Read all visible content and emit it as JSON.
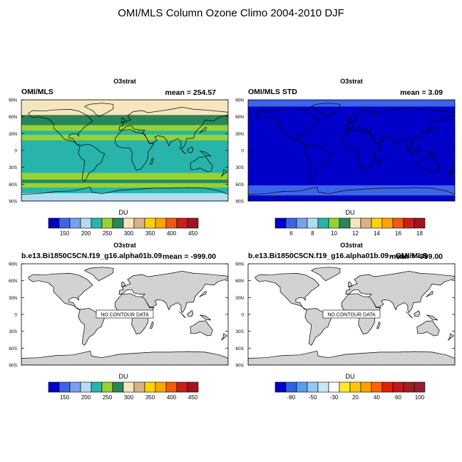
{
  "page_title": "OMI/MLS Column Ozone Climo 2004-2010 DJF",
  "lat_ticks": [
    "90N",
    "60N",
    "30N",
    "0",
    "30S",
    "60S",
    "90S"
  ],
  "no_data_label": "NO CONTOUR DATA",
  "chart_data": [
    {
      "type": "heatmap",
      "center_title": "O3strat",
      "left_title": "OMI/MLS",
      "right_title": "mean = 254.57",
      "colorbar_label": "DU",
      "colorbar_colors": [
        "#0000c8",
        "#3c64e6",
        "#78a0f0",
        "#b4dcf0",
        "#28b4aa",
        "#96d232",
        "#28875a",
        "#f5e6be",
        "#d7b482",
        "#ffd200",
        "#ffa500",
        "#f05a0a",
        "#c81e1e",
        "#a0141e"
      ],
      "colorbar_ticks": [
        "150",
        "200",
        "250",
        "300",
        "350",
        "400",
        "450"
      ],
      "has_data": true,
      "bands": [
        {
          "lat_top": 90,
          "lat_bottom": 63,
          "color": "#f5e6be"
        },
        {
          "lat_top": 63,
          "lat_bottom": 45,
          "color": "#28875a"
        },
        {
          "lat_top": 45,
          "lat_bottom": 35,
          "color": "#96d232"
        },
        {
          "lat_top": 35,
          "lat_bottom": 28,
          "color": "#28b4aa"
        },
        {
          "lat_top": 28,
          "lat_bottom": 18,
          "color": "#96d232"
        },
        {
          "lat_top": 18,
          "lat_bottom": -40,
          "color": "#28b4aa"
        },
        {
          "lat_top": -40,
          "lat_bottom": -52,
          "color": "#96d232"
        },
        {
          "lat_top": -52,
          "lat_bottom": -58,
          "color": "#28875a"
        },
        {
          "lat_top": -58,
          "lat_bottom": -66,
          "color": "#96d232"
        },
        {
          "lat_top": -66,
          "lat_bottom": -76,
          "color": "#28b4aa"
        },
        {
          "lat_top": -76,
          "lat_bottom": -90,
          "color": "#b4dcf0"
        }
      ]
    },
    {
      "type": "heatmap",
      "center_title": "O3strat",
      "left_title": "OMI/MLS STD",
      "right_title": "mean =   3.09",
      "colorbar_label": "DU",
      "colorbar_colors": [
        "#0000c8",
        "#3c64e6",
        "#78a0f0",
        "#b4dcf0",
        "#28b4aa",
        "#96d232",
        "#28875a",
        "#f5e6be",
        "#d7b482",
        "#ffd200",
        "#ffa500",
        "#f05a0a",
        "#c81e1e",
        "#a0141e"
      ],
      "colorbar_ticks": [
        "6",
        "8",
        "10",
        "12",
        "14",
        "16",
        "18"
      ],
      "has_data": true,
      "bands": [
        {
          "lat_top": 90,
          "lat_bottom": 78,
          "color": "#3c64e6"
        },
        {
          "lat_top": 78,
          "lat_bottom": -62,
          "color": "#0000c8"
        },
        {
          "lat_top": -62,
          "lat_bottom": -80,
          "color": "#3c64e6"
        },
        {
          "lat_top": -80,
          "lat_bottom": -90,
          "color": "#0000c8"
        }
      ]
    },
    {
      "type": "heatmap",
      "center_title": "O3strat",
      "left_title": "b.e13.Bi1850C5CN.f19_g16.alpha01b.09",
      "right_title": "mean = -999.00",
      "colorbar_label": "DU",
      "colorbar_colors": [
        "#0000c8",
        "#3c64e6",
        "#78a0f0",
        "#b4dcf0",
        "#28b4aa",
        "#96d232",
        "#28875a",
        "#f5e6be",
        "#d7b482",
        "#ffd200",
        "#ffa500",
        "#f05a0a",
        "#c81e1e",
        "#a0141e"
      ],
      "colorbar_ticks": [
        "150",
        "200",
        "250",
        "300",
        "350",
        "400",
        "450"
      ],
      "has_data": false,
      "bands": []
    },
    {
      "type": "heatmap",
      "center_title": "O3strat",
      "left_title": "b.e13.Bi1850C5CN.f19_g16.alpha01b.09 - OMI/MLS",
      "right_title": "mean = -999.00",
      "colorbar_label": "DU",
      "colorbar_colors": [
        "#0000c8",
        "#2d64e6",
        "#55a0f0",
        "#96c8f0",
        "#c8e6f5",
        "#ffffff",
        "#ffe632",
        "#ffc800",
        "#ffa000",
        "#ff6400",
        "#e61e00",
        "#c8141e",
        "#a01e1e",
        "#961e32"
      ],
      "colorbar_ticks": [
        "-80",
        "-50",
        "-30",
        "20",
        "40",
        "60",
        "100"
      ],
      "has_data": false,
      "bands": []
    }
  ]
}
